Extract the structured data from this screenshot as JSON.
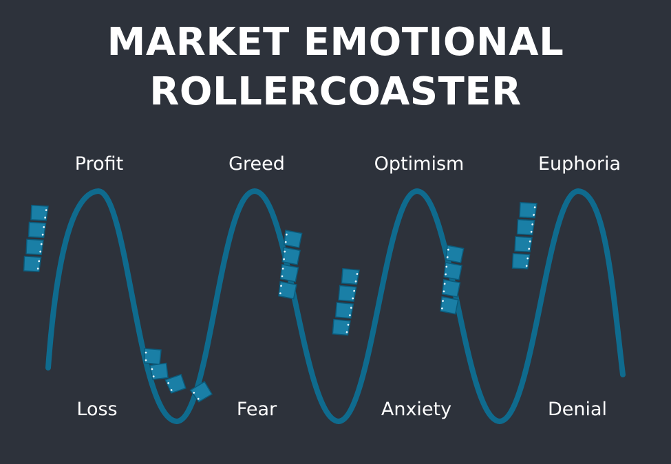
{
  "title": {
    "line1": "MARKET EMOTIONAL",
    "line2": "ROLLERCOASTER"
  },
  "peaks": [
    "Profit",
    "Greed",
    "Optimism",
    "Euphoria"
  ],
  "troughs": [
    "Loss",
    "Fear",
    "Anxiety",
    "Denial"
  ],
  "colors": {
    "background": "#2d323b",
    "track": "#0f6b8e",
    "car_fill": "#1a7fa6",
    "car_edge": "#0b5a7a",
    "bolt": "#e6f4fa",
    "text": "#ffffff"
  },
  "icons": {
    "track": "wave-track",
    "car": "coaster-car"
  }
}
